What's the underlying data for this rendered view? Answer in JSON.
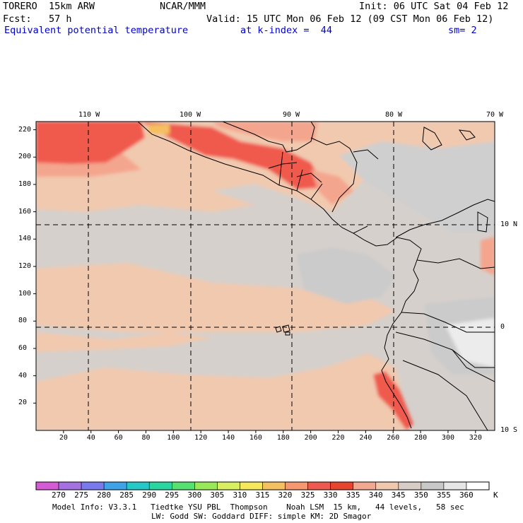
{
  "header": {
    "model": "TORERO  15km ARW",
    "center": "NCAR/MMM",
    "init": "Init: 06 UTC Sat 04 Feb 12",
    "fcst": "Fcst:   57 h",
    "valid": "Valid: 15 UTC Mon 06 Feb 12 (09 CST Mon 06 Feb 12)",
    "field": "Equivalent potential temperature",
    "level": "at k-index =  44",
    "smooth": "sm= 2"
  },
  "map": {
    "lon_labels": [
      "110 W",
      "100 W",
      "90 W",
      "80 W",
      "70 W"
    ],
    "lat_labels": [
      "10 N",
      "0",
      "10 S"
    ],
    "y_ticks": [
      20,
      40,
      60,
      80,
      100,
      120,
      140,
      160,
      180,
      200,
      220
    ],
    "x_ticks": [
      20,
      40,
      60,
      80,
      100,
      120,
      140,
      160,
      180,
      200,
      220,
      240,
      260,
      280,
      300,
      320
    ],
    "grid_extent": {
      "nx": 334,
      "ny": 226
    },
    "colors": {
      "land_outline": "#000000",
      "grid_line": "#000000"
    }
  },
  "legend": {
    "levels": [
      "270",
      "275",
      "280",
      "285",
      "290",
      "295",
      "300",
      "305",
      "310",
      "315",
      "320",
      "325",
      "330",
      "335",
      "340",
      "345",
      "350",
      "355",
      "360"
    ],
    "unit": "K",
    "colors": [
      "#d55ad5",
      "#a571e0",
      "#7a7aee",
      "#3fa3ea",
      "#23c8c8",
      "#28d6a0",
      "#55e070",
      "#98e85a",
      "#d8f060",
      "#f5e85a",
      "#f5c060",
      "#f59870",
      "#f05a4e",
      "#e8452e",
      "#f2a890",
      "#f0c8ae",
      "#d8ccc6",
      "#c8c8c8",
      "#e6e6e6",
      "#ffffff"
    ]
  },
  "footer": {
    "line1": "Model Info: V3.3.1   Tiedtke YSU PBL  Thompson    Noah LSM  15 km,   44 levels,   58 sec",
    "line2": "LW: Godd SW: Goddard DIFF: simple KM: 2D Smagor"
  }
}
